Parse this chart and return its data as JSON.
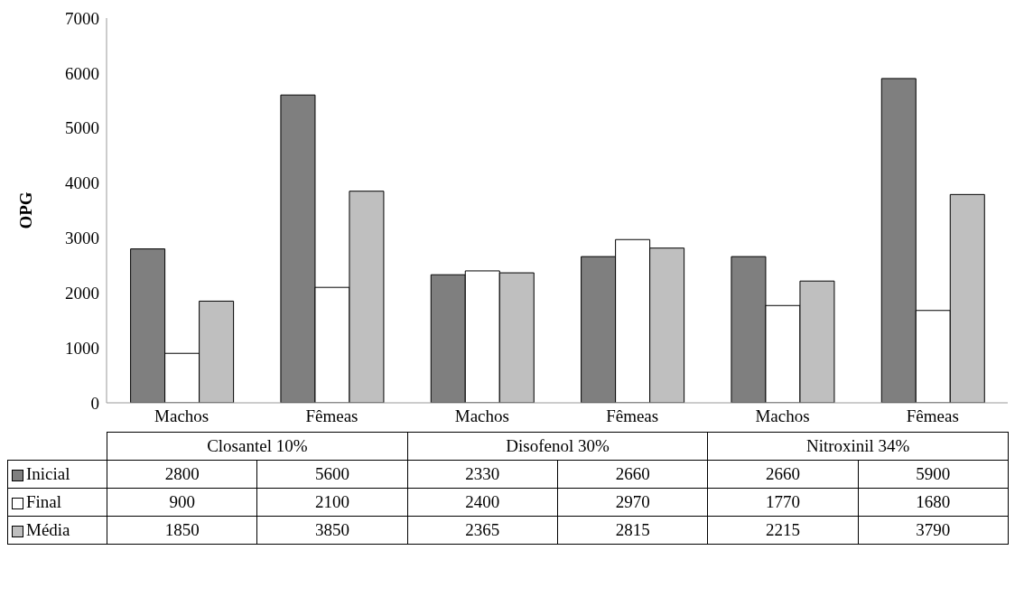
{
  "chart_data": {
    "type": "bar",
    "ylabel": "OPG",
    "categories": [
      "Machos",
      "Fêmeas",
      "Machos",
      "Fêmeas",
      "Machos",
      "Fêmeas"
    ],
    "annotations": [
      "Closantel 10%",
      "Disofenol 30%",
      "Nitroxinil 34%"
    ],
    "series": [
      {
        "name": "Inicial",
        "color": "#7f7f7f",
        "values": [
          2800,
          5600,
          2330,
          2660,
          2660,
          5900
        ]
      },
      {
        "name": "Final",
        "color": "#ffffff",
        "values": [
          900,
          2100,
          2400,
          2970,
          1770,
          1680
        ]
      },
      {
        "name": "Média",
        "color": "#bfbfbf",
        "values": [
          1850,
          3850,
          2365,
          2815,
          2215,
          3790
        ]
      }
    ],
    "ylim": [
      0,
      7000
    ],
    "yticks": [
      0,
      1000,
      2000,
      3000,
      4000,
      5000,
      6000,
      7000
    ],
    "grid": false,
    "legend": "bottom",
    "data_labels": true
  }
}
